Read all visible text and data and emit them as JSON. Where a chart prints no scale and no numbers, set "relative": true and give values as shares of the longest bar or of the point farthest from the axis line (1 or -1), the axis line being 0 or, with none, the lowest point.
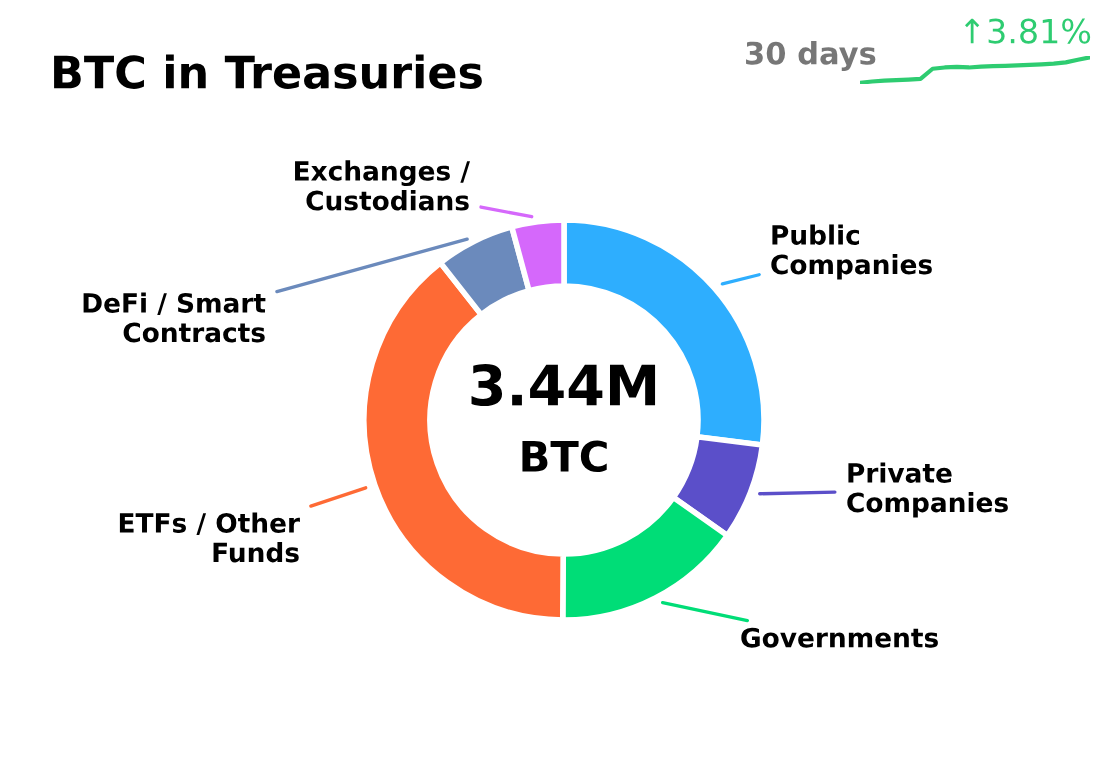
{
  "chart_data": [
    {
      "type": "donut",
      "title": "BTC in Treasuries",
      "annotations": [
        "3.44M",
        "BTC"
      ],
      "categories": [
        "Public Companies",
        "Private Companies",
        "Governments",
        "ETFs / Other Funds",
        "DeFi / Smart Contracts",
        "Exchanges / Custodians"
      ],
      "values": [
        27,
        7.8,
        15.3,
        39.3,
        6.4,
        4.2
      ],
      "colors": [
        "#2eaefe",
        "#5b4fc9",
        "#00dd77",
        "#fe6a35",
        "#6b8abc",
        "#d568fb"
      ]
    },
    {
      "type": "line",
      "title": "30 days",
      "annotations": [
        "↑3.81%"
      ],
      "relative": true,
      "categories": [
        null,
        null,
        null,
        null,
        null,
        null,
        null,
        null,
        null,
        null,
        null,
        null,
        null,
        null,
        null,
        null,
        null,
        null,
        null,
        null
      ],
      "series": [
        {
          "color": "#2ecc71",
          "values": [
            0,
            0.05,
            0.08,
            0.1,
            0.12,
            0.15,
            0.55,
            0.6,
            0.62,
            0.6,
            0.63,
            0.65,
            0.66,
            0.68,
            0.7,
            0.72,
            0.75,
            0.8,
            0.9,
            1
          ]
        }
      ]
    }
  ]
}
